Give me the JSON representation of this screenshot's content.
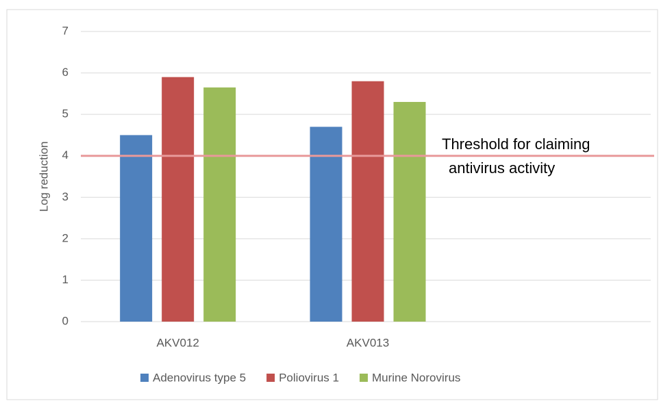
{
  "chart_data": {
    "type": "bar",
    "y_label": "Log reduction",
    "categories": [
      "AKV012",
      "AKV013",
      null
    ],
    "series": [
      {
        "name": "Adenovirus type 5",
        "color": "#4f81bd",
        "values": [
          4.5,
          4.7,
          null
        ]
      },
      {
        "name": "Poliovirus 1",
        "color": "#c0504d",
        "values": [
          5.9,
          5.8,
          null
        ]
      },
      {
        "name": "Murine Norovirus",
        "color": "#9bbb59",
        "values": [
          5.65,
          5.3,
          null
        ]
      }
    ],
    "ylim": [
      0,
      7
    ],
    "yticks": [
      0,
      1,
      2,
      3,
      4,
      5,
      6,
      7
    ],
    "grid": true,
    "threshold": {
      "value": 4,
      "color": "#e8999a",
      "label_lines": [
        "Threshold for claiming",
        "antivirus activity"
      ]
    },
    "legend": "bottom"
  }
}
